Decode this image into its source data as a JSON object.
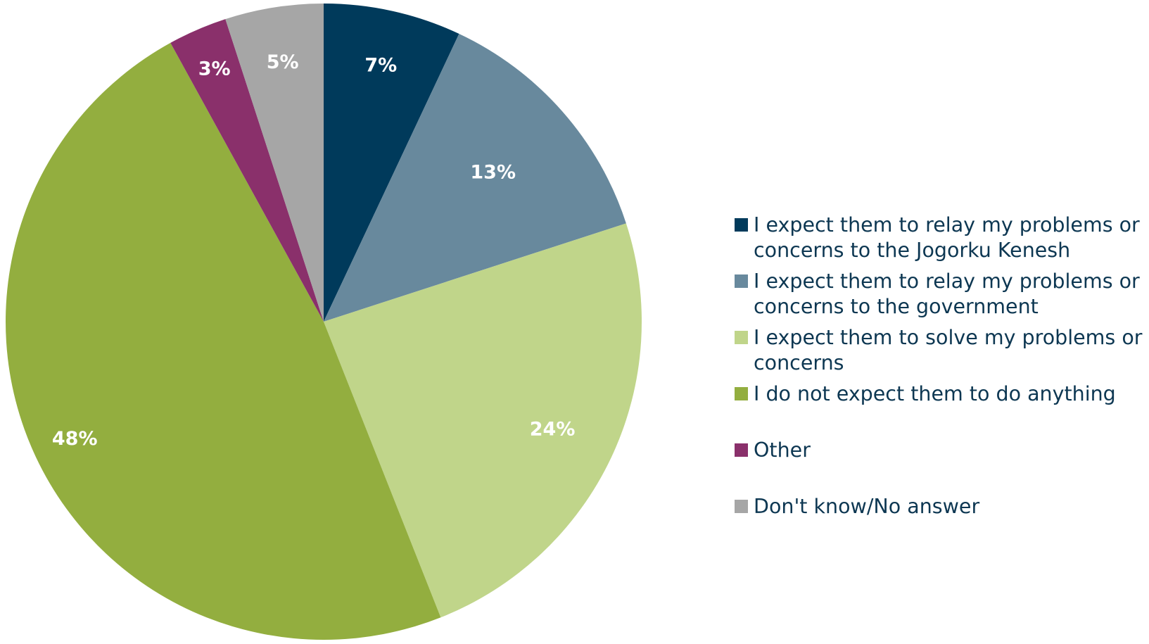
{
  "chart_data": {
    "type": "pie",
    "title": "",
    "start_angle": "12 o'clock",
    "direction": "clockwise",
    "slices": [
      {
        "label": "I expect them to relay my problems or concerns to the Jogorku Kenesh",
        "value": 7,
        "value_label": "7%",
        "color": "#003a5b"
      },
      {
        "label": "I expect them to relay my problems or concerns to the government",
        "value": 13,
        "value_label": "13%",
        "color": "#68899d"
      },
      {
        "label": "I expect them to solve my problems or concerns",
        "value": 24,
        "value_label": "24%",
        "color": "#c0d58a"
      },
      {
        "label": "I do not expect them to do anything",
        "value": 48,
        "value_label": "48%",
        "color": "#93ae3f"
      },
      {
        "label": "Other",
        "value": 3,
        "value_label": "3%",
        "color": "#8a306b"
      },
      {
        "label": "Don't know/No answer",
        "value": 5,
        "value_label": "5%",
        "color": "#a6a6a6"
      }
    ],
    "legend_position": "right"
  }
}
